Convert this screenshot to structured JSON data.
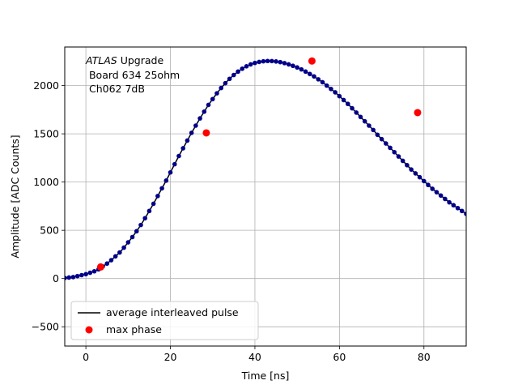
{
  "chart_data": {
    "type": "scatter",
    "xlabel": "Time [ns]",
    "ylabel": "Amplitude [ADC Counts]",
    "xlim": [
      -5,
      90
    ],
    "ylim": [
      -700,
      2400
    ],
    "xticks": [
      0,
      20,
      40,
      60,
      80
    ],
    "yticks": [
      -500,
      0,
      500,
      1000,
      1500,
      2000
    ],
    "xtick_labels": [
      "0",
      "20",
      "40",
      "60",
      "80"
    ],
    "ytick_labels": [
      "−500",
      "0",
      "500",
      "1000",
      "1500",
      "2000"
    ],
    "grid": true,
    "legend_position": "lower-left",
    "annotation": {
      "line1_italic": "ATLAS",
      "line1_rest": " Upgrade",
      "line2": " Board 634 25ohm",
      "line3": " Ch062 7dB"
    },
    "series": [
      {
        "name": "average interleaved pulse",
        "color": "#000000",
        "marker_color": "#00008b",
        "x": [
          -5,
          -4,
          -3,
          -2,
          -1,
          0,
          1,
          2,
          3,
          4,
          5,
          6,
          7,
          8,
          9,
          10,
          11,
          12,
          13,
          14,
          15,
          16,
          17,
          18,
          19,
          20,
          21,
          22,
          23,
          24,
          25,
          26,
          27,
          28,
          29,
          30,
          31,
          32,
          33,
          34,
          35,
          36,
          37,
          38,
          39,
          40,
          41,
          42,
          43,
          44,
          45,
          46,
          47,
          48,
          49,
          50,
          51,
          52,
          53,
          54,
          55,
          56,
          57,
          58,
          59,
          60,
          61,
          62,
          63,
          64,
          65,
          66,
          67,
          68,
          69,
          70,
          71,
          72,
          73,
          74,
          75,
          76,
          77,
          78,
          79,
          80,
          81,
          82,
          83,
          84,
          85,
          86,
          87,
          88,
          89,
          90
        ],
        "y": [
          5,
          10,
          15,
          25,
          35,
          45,
          60,
          75,
          95,
          125,
          155,
          190,
          230,
          270,
          320,
          375,
          430,
          490,
          555,
          625,
          700,
          775,
          855,
          935,
          1015,
          1100,
          1185,
          1270,
          1350,
          1430,
          1510,
          1585,
          1660,
          1730,
          1800,
          1860,
          1920,
          1975,
          2025,
          2070,
          2110,
          2145,
          2175,
          2200,
          2220,
          2235,
          2245,
          2252,
          2255,
          2254,
          2250,
          2243,
          2233,
          2220,
          2205,
          2188,
          2168,
          2145,
          2120,
          2095,
          2065,
          2035,
          2000,
          1965,
          1930,
          1890,
          1850,
          1810,
          1765,
          1720,
          1675,
          1630,
          1585,
          1540,
          1490,
          1445,
          1400,
          1355,
          1310,
          1265,
          1220,
          1175,
          1130,
          1090,
          1050,
          1010,
          970,
          930,
          895,
          860,
          825,
          790,
          760,
          730,
          700,
          670
        ]
      },
      {
        "name": "max phase",
        "color": "#ff0000",
        "x": [
          3.5,
          28.5,
          53.5,
          78.5
        ],
        "y": [
          120,
          1510,
          2255,
          1720
        ]
      }
    ]
  }
}
